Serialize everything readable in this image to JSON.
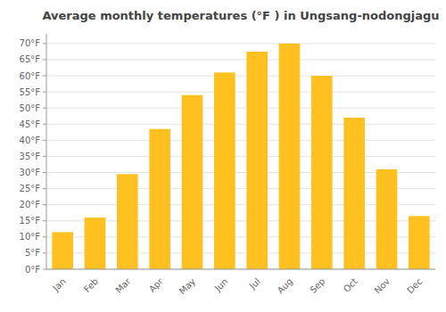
{
  "chart_data": {
    "type": "bar",
    "title": "Average monthly temperatures (°F ) in Ungsang-nodongjagu",
    "categories": [
      "Jan",
      "Feb",
      "Mar",
      "Apr",
      "May",
      "Jun",
      "Jul",
      "Aug",
      "Sep",
      "Oct",
      "Nov",
      "Dec"
    ],
    "values": [
      11.5,
      16.0,
      29.5,
      43.5,
      54.0,
      61.0,
      67.5,
      70.0,
      60.0,
      47.0,
      31.0,
      16.5
    ],
    "color": "#FFC020",
    "ylim": [
      0,
      73
    ],
    "yticks": [
      {
        "value": 0,
        "label": "0°F"
      },
      {
        "value": 5,
        "label": "5°F"
      },
      {
        "value": 10,
        "label": "10°F"
      },
      {
        "value": 15,
        "label": "15°F"
      },
      {
        "value": 20,
        "label": "20°F"
      },
      {
        "value": 25,
        "label": "25°F"
      },
      {
        "value": 30,
        "label": "30°F"
      },
      {
        "value": 35,
        "label": "35°F"
      },
      {
        "value": 40,
        "label": "40°F"
      },
      {
        "value": 45,
        "label": "45°F"
      },
      {
        "value": 50,
        "label": "50°F"
      },
      {
        "value": 55,
        "label": "55°F"
      },
      {
        "value": 60,
        "label": "60°F"
      },
      {
        "value": 65,
        "label": "65°F"
      },
      {
        "value": 70,
        "label": "70°F"
      }
    ],
    "grid": true
  }
}
